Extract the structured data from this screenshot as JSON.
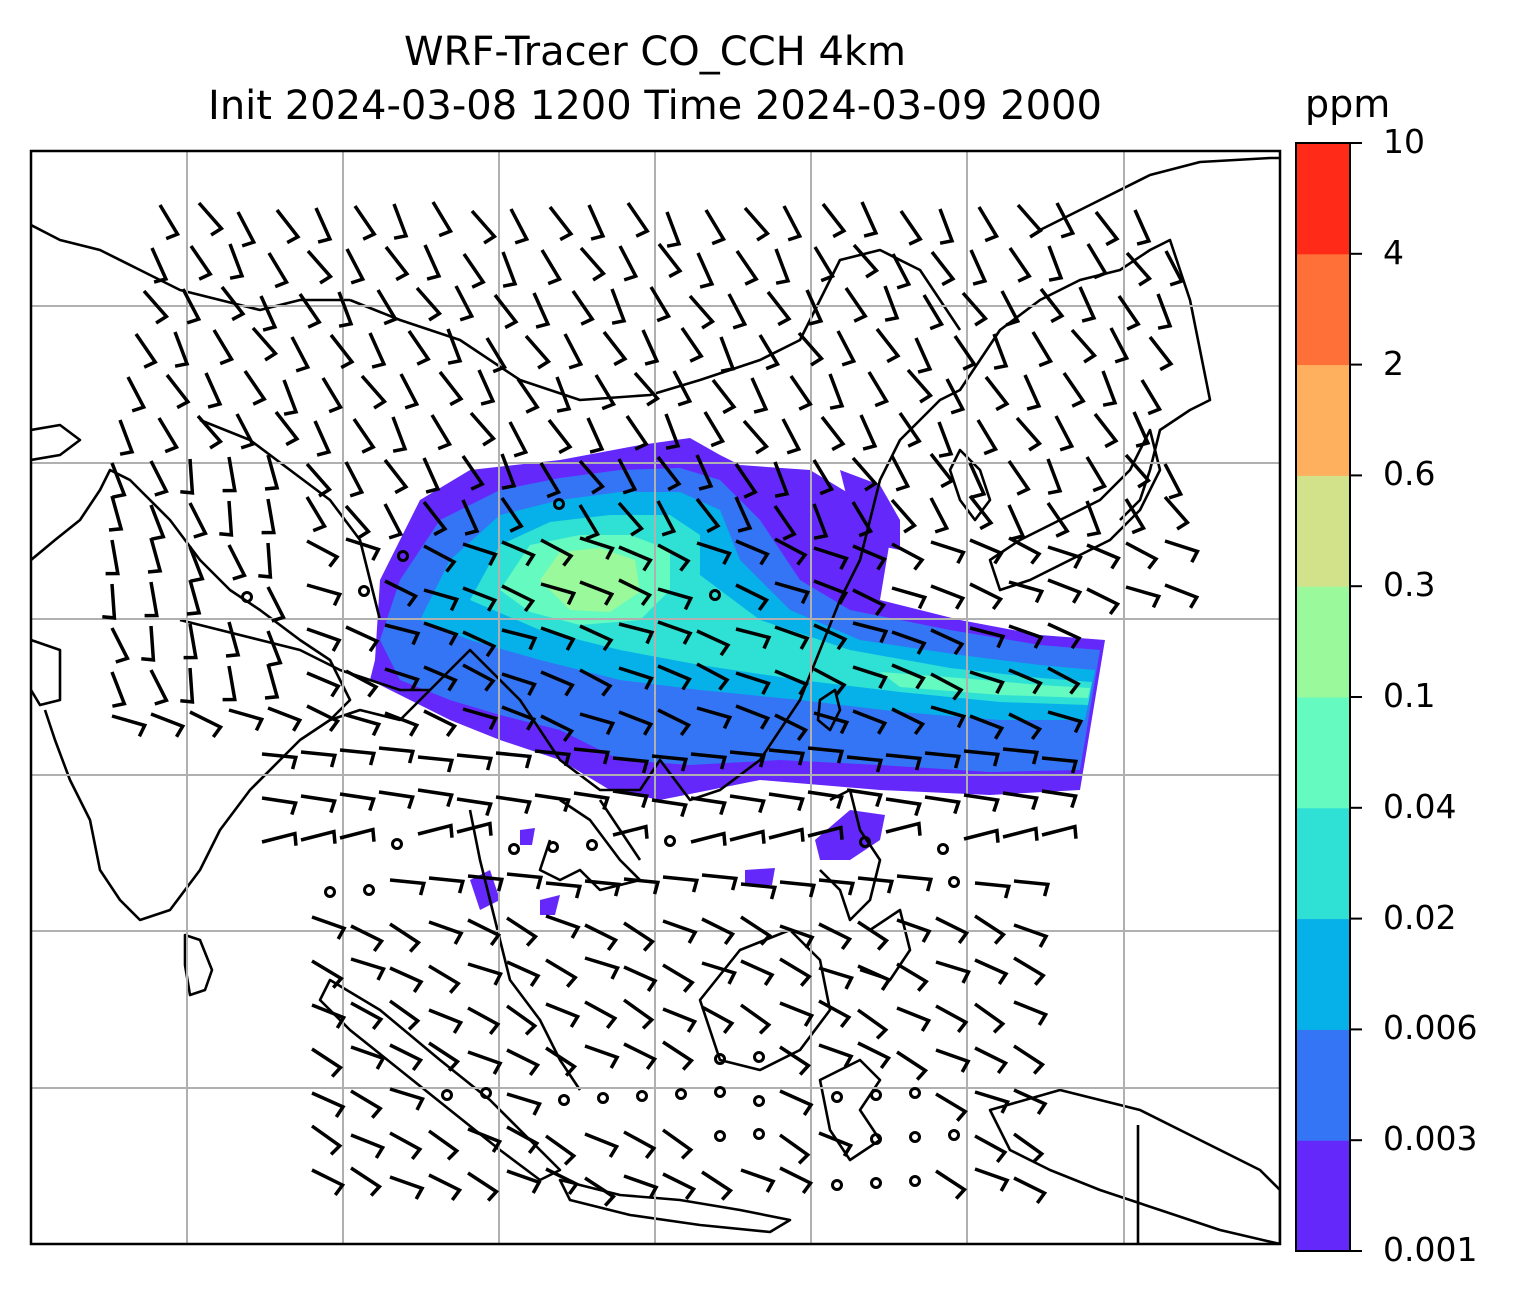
{
  "title": {
    "line1": "WRF-Tracer CO_CCH 4km",
    "line2": "Init 2024-03-08 1200 Time 2024-03-09 2000"
  },
  "colorbar": {
    "unit": "ppm",
    "ticks": [
      "0.001",
      "0.003",
      "0.006",
      "0.02",
      "0.04",
      "0.1",
      "0.3",
      "0.6",
      "2",
      "4",
      "10"
    ],
    "colors": [
      "#6528fb",
      "#3475f5",
      "#06b1ea",
      "#2fe1d4",
      "#64fac0",
      "#9af99a",
      "#d2e28b",
      "#ffb05f",
      "#ff7039",
      "#ff2a17"
    ]
  },
  "map": {
    "projection": "Mercator",
    "features": [
      "coastlines",
      "country borders",
      "gridlines",
      "wind barbs",
      "tracer concentration shading"
    ],
    "gridline_color": "#b0b0b0"
  }
}
